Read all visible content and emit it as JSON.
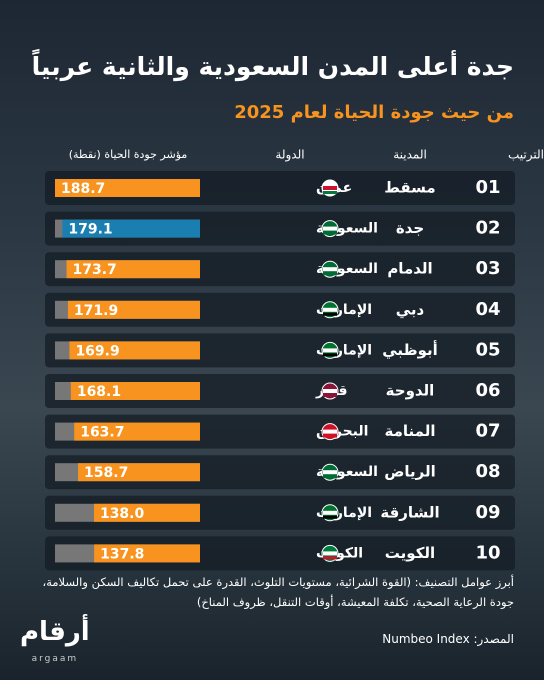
{
  "chart_data": {
    "type": "bar",
    "title": "جدة أعلى المدن السعودية والثانية عربياً",
    "subtitle": "من حيث جودة الحياة لعام 2025",
    "headers": {
      "rank": "الترتيب",
      "city": "المدينة",
      "country": "الدولة",
      "value": "مؤشر جودة الحياة (نقطة)"
    },
    "ranks": [
      "01",
      "02",
      "03",
      "04",
      "05",
      "06",
      "07",
      "08",
      "09",
      "10"
    ],
    "categories": [
      "مسقط",
      "جدة",
      "الدمام",
      "دبي",
      "أبوظبي",
      "الدوحة",
      "المنامة",
      "الرياض",
      "الشارقة",
      "الكويت"
    ],
    "countries": [
      "عمان",
      "السعودية",
      "السعودية",
      "الإمارات",
      "الإمارات",
      "قطر",
      "البحرين",
      "السعودية",
      "الإمارات",
      "الكويت"
    ],
    "values": [
      188.7,
      179.1,
      173.7,
      171.9,
      169.9,
      168.1,
      163.7,
      158.7,
      138.0,
      137.8
    ],
    "value_labels": [
      "188.7",
      "179.1",
      "173.7",
      "171.9",
      "169.9",
      "168.1",
      "163.7",
      "158.7",
      "138.0",
      "137.8"
    ],
    "colors": [
      "#f7931e",
      "#1a7fb0",
      "#f7931e",
      "#f7931e",
      "#f7931e",
      "#f7931e",
      "#f7931e",
      "#f7931e",
      "#f7931e",
      "#f7931e"
    ],
    "note": "أبرز عوامل التصنيف: (القوة الشرائية، مستويات التلوث، القدرة على تحمل تكاليف السكن والسلامة، جودة الرعاية الصحية، تكلفة المعيشة، أوقات التنقل، ظروف المناخ)",
    "source": "المصدر: Numbeo Index"
  },
  "logo": {
    "arabic": "أرقام",
    "latin": "argaam"
  }
}
